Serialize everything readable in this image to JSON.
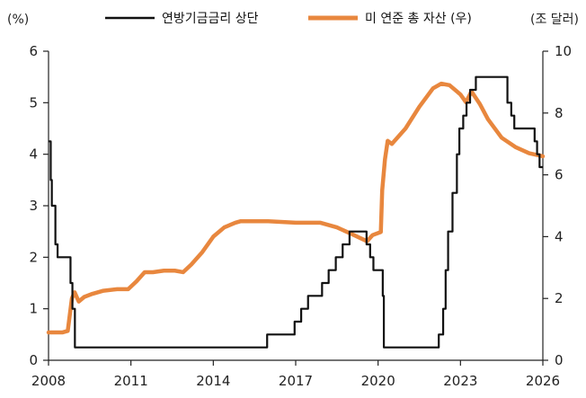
{
  "chart_data": {
    "type": "line",
    "left_unit": "(%)",
    "right_unit": "(조 달러)",
    "x_ticks": [
      2008,
      2011,
      2014,
      2017,
      2020,
      2023,
      2026
    ],
    "xlim": [
      2008,
      2026
    ],
    "ylim_left": [
      0,
      6
    ],
    "ylim_right": [
      0,
      10
    ],
    "y_ticks_left": [
      0,
      1,
      2,
      3,
      4,
      5,
      6
    ],
    "y_ticks_right": [
      0,
      2,
      4,
      6,
      8,
      10
    ],
    "legend_position": "top",
    "series": [
      {
        "name": "연방기금금리 상단",
        "axis": "left",
        "color": "#111111",
        "step": true,
        "x": [
          2008.0,
          2008.08,
          2008.12,
          2008.25,
          2008.33,
          2008.8,
          2008.87,
          2008.96,
          2015.96,
          2016.96,
          2017.2,
          2017.45,
          2017.96,
          2018.2,
          2018.46,
          2018.71,
          2018.96,
          2019.58,
          2019.71,
          2019.83,
          2020.17,
          2020.21,
          2022.21,
          2022.37,
          2022.46,
          2022.55,
          2022.71,
          2022.87,
          2022.96,
          2023.1,
          2023.22,
          2023.35,
          2023.56,
          2024.71,
          2024.85,
          2024.96,
          2025.7,
          2025.79,
          2025.88,
          2026.0
        ],
        "y": [
          4.25,
          3.5,
          3.0,
          2.25,
          2.0,
          1.5,
          1.0,
          0.25,
          0.5,
          0.75,
          1.0,
          1.25,
          1.5,
          1.75,
          2.0,
          2.25,
          2.5,
          2.25,
          2.0,
          1.75,
          1.25,
          0.25,
          0.5,
          1.0,
          1.75,
          2.5,
          3.25,
          4.0,
          4.5,
          4.75,
          5.0,
          5.25,
          5.5,
          5.0,
          4.75,
          4.5,
          4.25,
          4.0,
          3.75,
          3.75
        ]
      },
      {
        "name": "미 연준 총 자산 (우)",
        "axis": "right",
        "color": "#E8873E",
        "step": false,
        "x": [
          2008.0,
          2008.5,
          2008.7,
          2008.85,
          2008.95,
          2009.1,
          2009.3,
          2009.6,
          2010.0,
          2010.5,
          2010.9,
          2011.2,
          2011.5,
          2011.8,
          2012.2,
          2012.6,
          2012.9,
          2013.2,
          2013.6,
          2014.0,
          2014.4,
          2014.8,
          2015.0,
          2016.0,
          2017.0,
          2017.9,
          2018.5,
          2019.0,
          2019.6,
          2019.8,
          2020.1,
          2020.15,
          2020.25,
          2020.35,
          2020.5,
          2021.0,
          2021.5,
          2022.0,
          2022.3,
          2022.6,
          2023.0,
          2023.2,
          2023.4,
          2023.7,
          2024.0,
          2024.5,
          2025.0,
          2025.5,
          2026.0
        ],
        "y": [
          0.9,
          0.9,
          0.95,
          2.0,
          2.2,
          1.9,
          2.05,
          2.15,
          2.25,
          2.3,
          2.3,
          2.55,
          2.85,
          2.85,
          2.9,
          2.9,
          2.85,
          3.1,
          3.5,
          4.0,
          4.3,
          4.45,
          4.5,
          4.5,
          4.45,
          4.45,
          4.3,
          4.1,
          3.85,
          4.05,
          4.15,
          5.5,
          6.5,
          7.1,
          7.0,
          7.5,
          8.2,
          8.8,
          8.95,
          8.9,
          8.6,
          8.35,
          8.7,
          8.3,
          7.8,
          7.2,
          6.9,
          6.7,
          6.6
        ]
      }
    ]
  }
}
